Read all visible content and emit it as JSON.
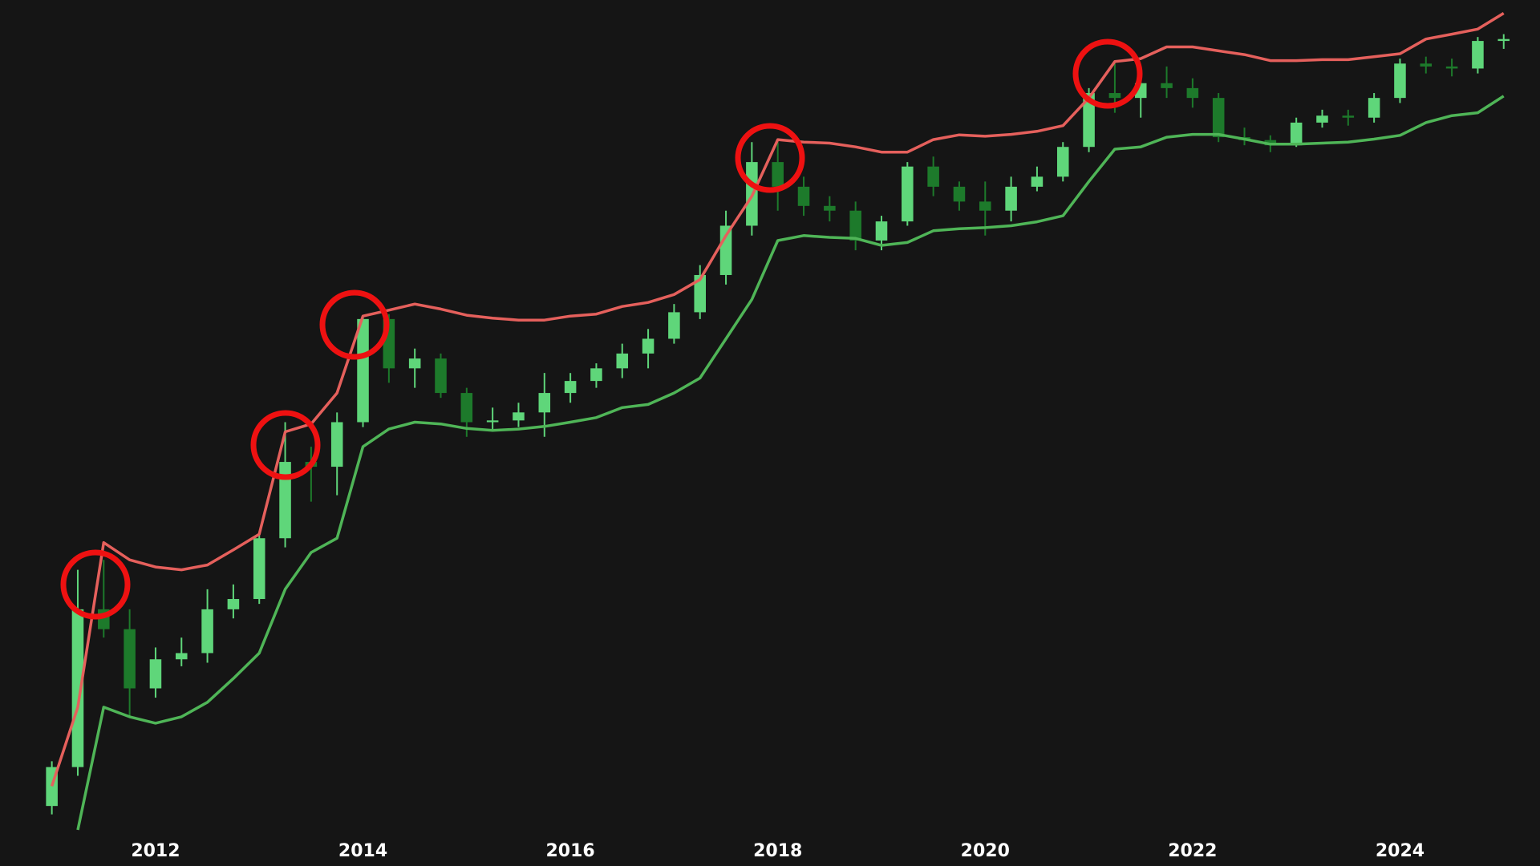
{
  "chart_data": {
    "type": "candlestick",
    "log_scale": true,
    "background": "#151515",
    "up_color": "#5fd67a",
    "down_color": "#1d7a2b",
    "xlim": [
      2010.5,
      2025.35
    ],
    "ylim": [
      0.1,
      100000
    ],
    "xticks": [
      2012,
      2014,
      2016,
      2018,
      2020,
      2022,
      2024
    ],
    "x": [
      2011,
      2011.25,
      2011.5,
      2011.75,
      2012,
      2012.25,
      2012.5,
      2012.75,
      2013,
      2013.25,
      2013.5,
      2013.75,
      2014,
      2014.25,
      2014.5,
      2014.75,
      2015,
      2015.25,
      2015.5,
      2015.75,
      2016,
      2016.25,
      2016.5,
      2016.75,
      2017,
      2017.25,
      2017.5,
      2017.75,
      2018,
      2018.25,
      2018.5,
      2018.75,
      2019,
      2019.25,
      2019.5,
      2019.75,
      2020,
      2020.25,
      2020.5,
      2020.75,
      2021,
      2021.25,
      2021.5,
      2021.75,
      2022,
      2022.25,
      2022.5,
      2022.75,
      2023,
      2023.25,
      2023.5,
      2023.75,
      2024,
      2024.25,
      2024.5,
      2024.75,
      2025
    ],
    "open": [
      0.15,
      0.29,
      4.2,
      3.0,
      1.1,
      1.8,
      2.0,
      4.2,
      5.0,
      14,
      51,
      47,
      100,
      574,
      249,
      294,
      164,
      100,
      103,
      118,
      164,
      201,
      249,
      320,
      411,
      644,
      1210,
      2790,
      8200,
      5400,
      3900,
      3600,
      2170,
      3000,
      7600,
      5400,
      4200,
      3600,
      5400,
      6400,
      10600,
      26400,
      24300,
      31200,
      28700,
      24300,
      12500,
      11900,
      10900,
      16000,
      18000,
      17400,
      24300,
      43500,
      41400,
      40000,
      63800
    ],
    "high": [
      0.32,
      8.2,
      9.7,
      4.2,
      2.2,
      2.6,
      5.9,
      6.4,
      15,
      100,
      66,
      118,
      603,
      624,
      348,
      320,
      179,
      128,
      139,
      230,
      230,
      271,
      378,
      485,
      740,
      1430,
      3600,
      11500,
      11500,
      6400,
      4600,
      4200,
      3300,
      8200,
      9000,
      5900,
      5900,
      6400,
      7600,
      11500,
      28700,
      43500,
      33900,
      41400,
      33900,
      26400,
      14700,
      12900,
      17400,
      19900,
      19900,
      26400,
      47300,
      48900,
      47300,
      68200,
      71600
    ],
    "low": [
      0.13,
      0.25,
      2.6,
      0.68,
      0.94,
      1.6,
      1.7,
      3.6,
      4.6,
      12,
      26,
      29,
      92,
      195,
      179,
      151,
      78,
      85,
      92,
      78,
      139,
      179,
      211,
      249,
      378,
      574,
      1030,
      2360,
      3600,
      3300,
      3000,
      1840,
      1840,
      2790,
      4600,
      3600,
      2360,
      3000,
      5000,
      5900,
      9700,
      18900,
      17400,
      24300,
      20600,
      11500,
      10900,
      9700,
      10600,
      14700,
      15200,
      16000,
      22300,
      36800,
      35000,
      36800,
      55800
    ],
    "close": [
      0.29,
      4.2,
      3.0,
      1.1,
      1.8,
      2.0,
      4.2,
      5.0,
      14,
      51,
      47,
      100,
      574,
      249,
      294,
      164,
      100,
      103,
      118,
      164,
      201,
      249,
      320,
      411,
      644,
      1210,
      2790,
      8200,
      5400,
      3900,
      3600,
      2170,
      3000,
      7600,
      5400,
      4200,
      3600,
      5400,
      6400,
      10600,
      26400,
      24300,
      31200,
      28700,
      24300,
      12500,
      11900,
      10900,
      16000,
      18000,
      17400,
      24300,
      43500,
      41400,
      40000,
      63800,
      65900
    ],
    "bands": [
      {
        "color": "#e5605c",
        "values": [
          0.21,
          0.8,
          13,
          9.7,
          8.6,
          8.2,
          8.9,
          11.5,
          15,
          85,
          97,
          164,
          603,
          667,
          740,
          680,
          612,
          583,
          564,
          564,
          603,
          624,
          710,
          760,
          870,
          1120,
          2360,
          4600,
          12000,
          11500,
          11300,
          10600,
          9700,
          9700,
          12000,
          13000,
          12700,
          13100,
          13800,
          15200,
          24300,
          45000,
          47300,
          57700,
          57700,
          54000,
          50600,
          45700,
          45700,
          46500,
          46500,
          48900,
          51400,
          65900,
          71600,
          78000,
          102000
        ]
      },
      {
        "color": "#4fb557",
        "values": [
          null,
          0.1,
          0.8,
          0.68,
          0.61,
          0.68,
          0.87,
          1.3,
          2.0,
          5.9,
          11,
          14,
          66,
          89,
          100,
          97,
          90,
          87,
          89,
          93,
          100,
          108,
          128,
          135,
          164,
          211,
          411,
          800,
          2170,
          2360,
          2290,
          2250,
          2000,
          2100,
          2560,
          2650,
          2700,
          2790,
          2980,
          3300,
          5900,
          10200,
          10600,
          12500,
          13100,
          13100,
          12100,
          11100,
          11100,
          11300,
          11500,
          12100,
          12900,
          16000,
          18000,
          18900,
          25100
        ]
      }
    ]
  }
}
